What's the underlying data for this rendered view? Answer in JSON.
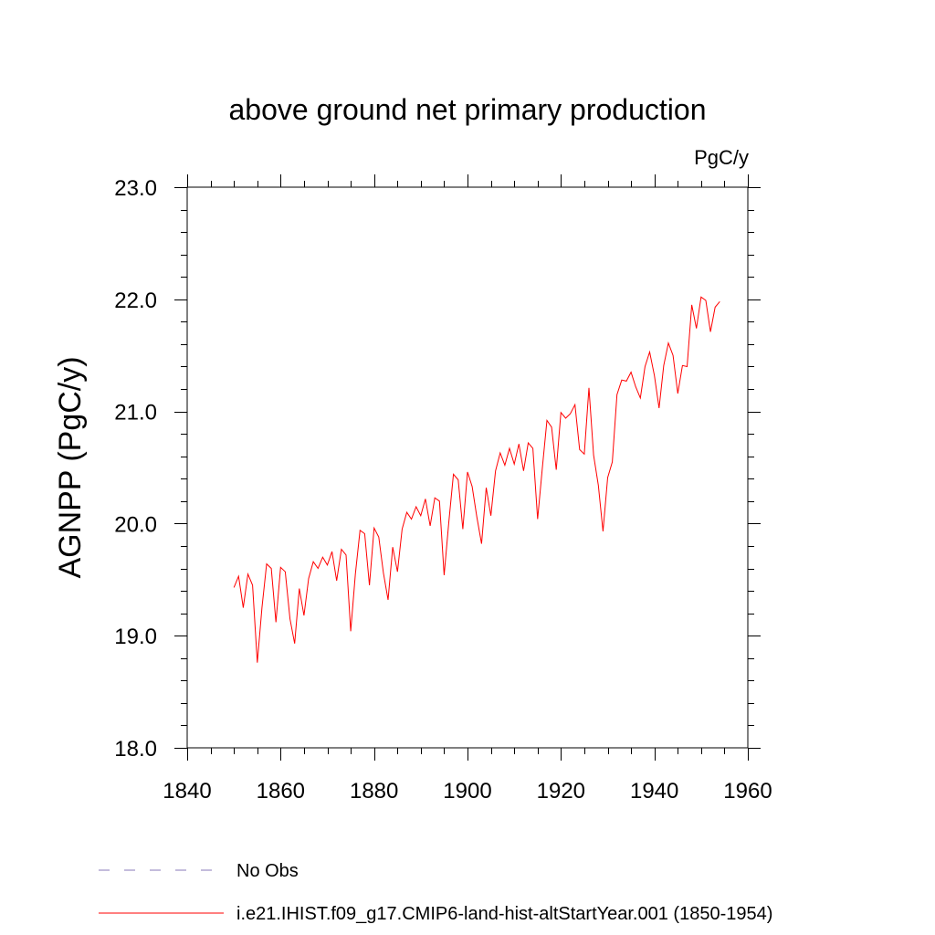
{
  "chart_data": {
    "type": "line",
    "title": "above ground net primary production",
    "units": "PgC/y",
    "ylabel": "AGNPP  (PgC/y)",
    "xlabel": "",
    "xlim": [
      1840,
      1960
    ],
    "ylim": [
      18.0,
      23.0
    ],
    "x_ticks": [
      1840,
      1860,
      1880,
      1900,
      1920,
      1940,
      1960
    ],
    "x_tick_labels": [
      "1840",
      "1860",
      "1880",
      "1900",
      "1920",
      "1940",
      "1960"
    ],
    "y_ticks": [
      18.0,
      19.0,
      20.0,
      21.0,
      22.0,
      23.0
    ],
    "y_tick_labels": [
      "18.0",
      "19.0",
      "20.0",
      "21.0",
      "22.0",
      "23.0"
    ],
    "grid": false,
    "legend_position": "bottom",
    "series": [
      {
        "name": "i.e21.IHIST.f09_g17.CMIP6-land-hist-altStartYear.001 (1850-1954)",
        "color": "#ff0000",
        "style": "solid",
        "x": [
          1850,
          1851,
          1852,
          1853,
          1854,
          1855,
          1856,
          1857,
          1858,
          1859,
          1860,
          1861,
          1862,
          1863,
          1864,
          1865,
          1866,
          1867,
          1868,
          1869,
          1870,
          1871,
          1872,
          1873,
          1874,
          1875,
          1876,
          1877,
          1878,
          1879,
          1880,
          1881,
          1882,
          1883,
          1884,
          1885,
          1886,
          1887,
          1888,
          1889,
          1890,
          1891,
          1892,
          1893,
          1894,
          1895,
          1896,
          1897,
          1898,
          1899,
          1900,
          1901,
          1902,
          1903,
          1904,
          1905,
          1906,
          1907,
          1908,
          1909,
          1910,
          1911,
          1912,
          1913,
          1914,
          1915,
          1916,
          1917,
          1918,
          1919,
          1920,
          1921,
          1922,
          1923,
          1924,
          1925,
          1926,
          1927,
          1928,
          1929,
          1930,
          1931,
          1932,
          1933,
          1934,
          1935,
          1936,
          1937,
          1938,
          1939,
          1940,
          1941,
          1942,
          1943,
          1944,
          1945,
          1946,
          1947,
          1948,
          1949,
          1950,
          1951,
          1952,
          1953,
          1954
        ],
        "y": [
          19.43,
          19.53,
          19.25,
          19.55,
          19.45,
          18.76,
          19.25,
          19.64,
          19.6,
          19.12,
          19.61,
          19.57,
          19.15,
          18.93,
          19.42,
          19.18,
          19.51,
          19.66,
          19.6,
          19.7,
          19.63,
          19.75,
          19.49,
          19.77,
          19.72,
          19.04,
          19.55,
          19.94,
          19.91,
          19.45,
          19.96,
          19.88,
          19.56,
          19.32,
          19.79,
          19.57,
          19.95,
          20.1,
          20.04,
          20.15,
          20.07,
          20.22,
          19.98,
          20.23,
          20.2,
          19.54,
          20.01,
          20.44,
          20.39,
          19.95,
          20.46,
          20.33,
          20.06,
          19.82,
          20.32,
          20.07,
          20.47,
          20.63,
          20.52,
          20.67,
          20.53,
          20.71,
          20.47,
          20.72,
          20.67,
          20.04,
          20.49,
          20.92,
          20.86,
          20.48,
          20.99,
          20.94,
          20.98,
          21.06,
          20.66,
          20.62,
          21.21,
          20.61,
          20.34,
          19.93,
          20.41,
          20.55,
          21.15,
          21.28,
          21.27,
          21.35,
          21.22,
          21.12,
          21.4,
          21.53,
          21.32,
          21.03,
          21.41,
          21.61,
          21.5,
          21.16,
          21.41,
          21.4,
          21.95,
          21.74,
          22.02,
          21.99,
          21.71,
          21.93,
          21.98
        ]
      },
      {
        "name": "No Obs",
        "color": "#8878b8",
        "style": "dashed",
        "x": [],
        "y": []
      }
    ]
  }
}
